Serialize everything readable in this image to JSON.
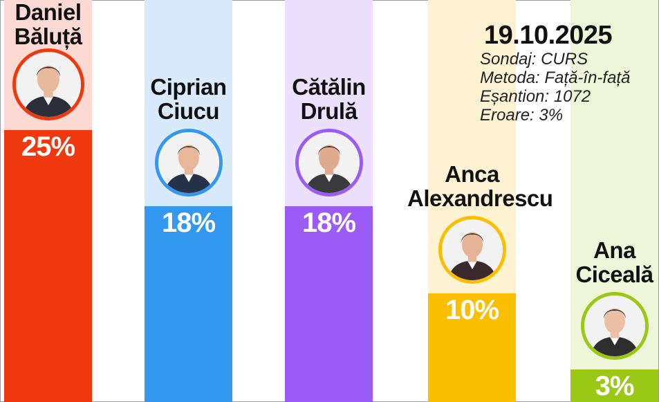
{
  "chart_data": {
    "type": "bar",
    "ylim": [
      0,
      25
    ],
    "categories": [
      "Daniel Băluță",
      "Ciprian Ciucu",
      "Cătălin Drulă",
      "Anca Alexandrescu",
      "Ana Ciceală"
    ],
    "bars": [
      {
        "name_line1": "Daniel",
        "name_line2": "Băluță",
        "value": 25,
        "label": "25%",
        "color": "#f0380f",
        "bg": "#fcd9d2"
      },
      {
        "name_line1": "Ciprian",
        "name_line2": "Ciucu",
        "value": 18,
        "label": "18%",
        "color": "#3498f0",
        "bg": "#d8eafb"
      },
      {
        "name_line1": "Cătălin",
        "name_line2": "Drulă",
        "value": 18,
        "label": "18%",
        "color": "#9b5cf6",
        "bg": "#ebe0fd"
      },
      {
        "name_line1": "Anca",
        "name_line2": "Alexandrescu",
        "value": 10,
        "label": "10%",
        "color": "#fbbf00",
        "bg": "#fdf3d2"
      },
      {
        "name_line1": "Ana",
        "name_line2": "Ciceală",
        "value": 3,
        "label": "3%",
        "color": "#9bc814",
        "bg": "#eef5d8"
      }
    ]
  },
  "info": {
    "date": "19.10.2025",
    "survey": "Sondaj: CURS",
    "method": "Metoda: Față-în-față",
    "sample": "Eșantion: 1072",
    "error": "Eroare: 3%"
  },
  "icons": [
    "portrait-icon"
  ]
}
